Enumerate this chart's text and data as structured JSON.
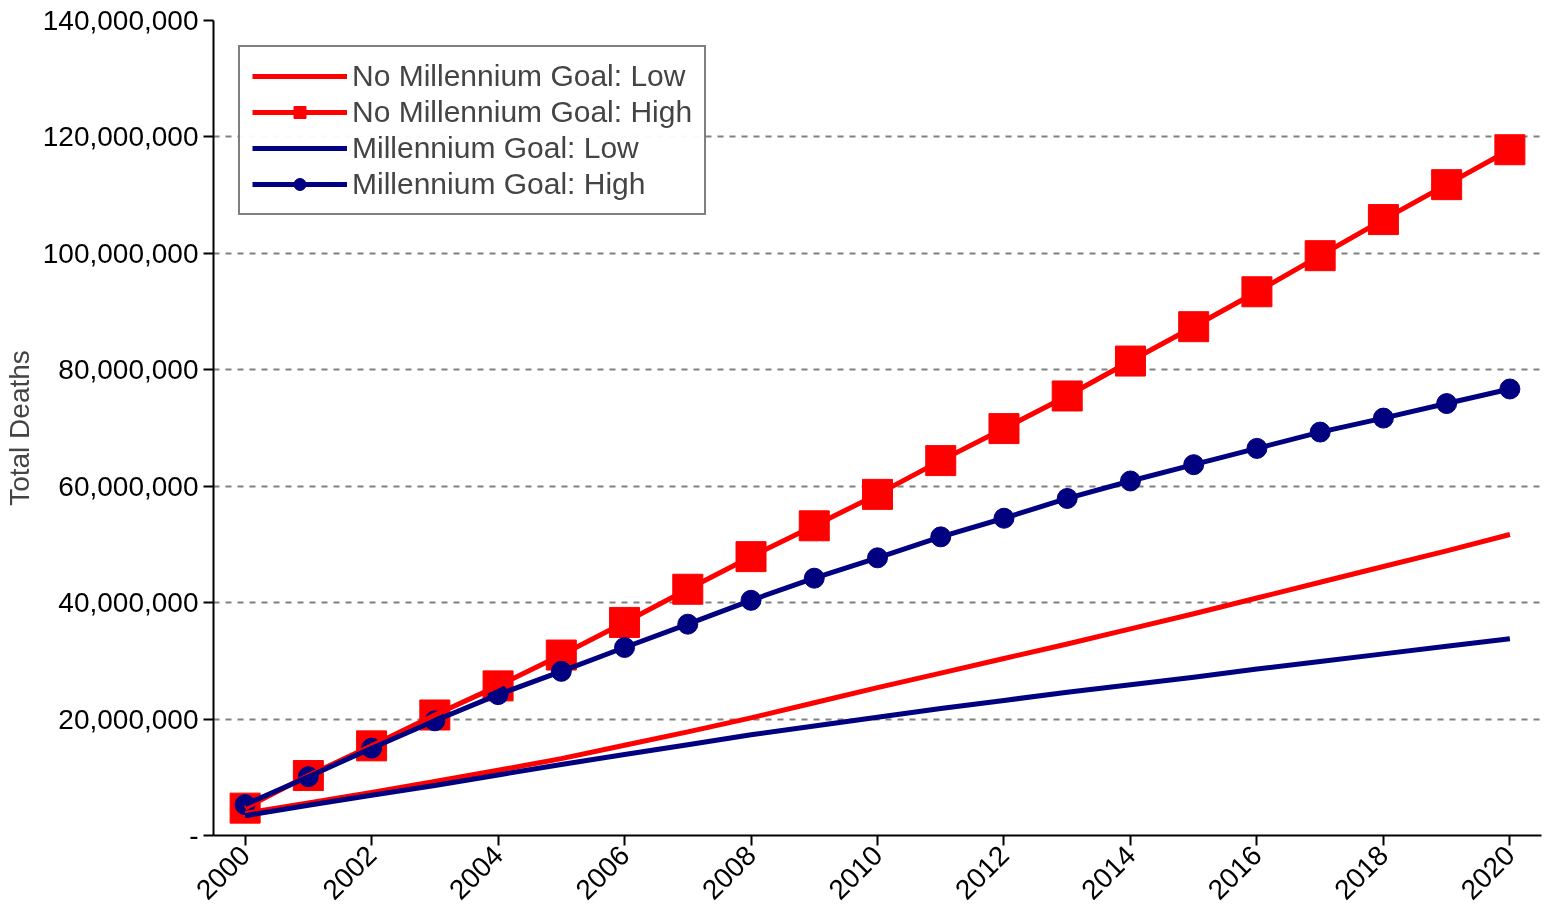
{
  "chart_data": {
    "type": "line",
    "ylabel": "Total Deaths",
    "x": [
      2000,
      2001,
      2002,
      2003,
      2004,
      2005,
      2006,
      2007,
      2008,
      2009,
      2010,
      2011,
      2012,
      2013,
      2014,
      2015,
      2016,
      2017,
      2018,
      2019,
      2020
    ],
    "xlim": [
      1999.5,
      2020.5
    ],
    "xticks": [
      2000,
      2002,
      2004,
      2006,
      2008,
      2010,
      2012,
      2014,
      2016,
      2018,
      2020
    ],
    "ylim": [
      0,
      140000000
    ],
    "yticks": [
      {
        "value": 0,
        "label": "-"
      },
      {
        "value": 20000000,
        "label": "20,000,000"
      },
      {
        "value": 40000000,
        "label": "40,000,000"
      },
      {
        "value": 60000000,
        "label": "60,000,000"
      },
      {
        "value": 80000000,
        "label": "80,000,000"
      },
      {
        "value": 100000000,
        "label": "100,000,000"
      },
      {
        "value": 120000000,
        "label": "120,000,000"
      },
      {
        "value": 140000000,
        "label": "140,000,000"
      }
    ],
    "grid": "y",
    "legend": "top left",
    "line_style": "solid",
    "series": [
      {
        "name": "No Millennium Goal: Low",
        "color": "#ff0000",
        "marker": "none",
        "values": [
          3800000,
          5600000,
          7400000,
          9300000,
          11200000,
          13200000,
          15500000,
          17800000,
          20200000,
          22800000,
          25400000,
          27900000,
          30400000,
          32900000,
          35500000,
          38100000,
          40800000,
          43500000,
          46200000,
          48900000,
          51700000
        ]
      },
      {
        "name": "No Millennium Goal: High",
        "color": "#ff0000",
        "marker": "square",
        "values": [
          4700000,
          10300000,
          15400000,
          20700000,
          25700000,
          31000000,
          36600000,
          42300000,
          47900000,
          53200000,
          58600000,
          64400000,
          69900000,
          75500000,
          81500000,
          87400000,
          93400000,
          99600000,
          105800000,
          111800000,
          117800000
        ]
      },
      {
        "name": "Millennium Goal: Low",
        "color": "#000080",
        "marker": "none",
        "values": [
          3400000,
          5200000,
          6900000,
          8600000,
          10400000,
          12200000,
          13900000,
          15600000,
          17300000,
          18800000,
          20300000,
          21800000,
          23200000,
          24600000,
          25900000,
          27200000,
          28600000,
          29900000,
          31200000,
          32500000,
          33800000
        ]
      },
      {
        "name": "Millennium Goal: High",
        "color": "#000080",
        "marker": "circle",
        "values": [
          5300000,
          10100000,
          15000000,
          19700000,
          24200000,
          28200000,
          32300000,
          36300000,
          40400000,
          44200000,
          47700000,
          51300000,
          54500000,
          57900000,
          60900000,
          63700000,
          66500000,
          69300000,
          71700000,
          74200000,
          76700000
        ]
      }
    ]
  }
}
